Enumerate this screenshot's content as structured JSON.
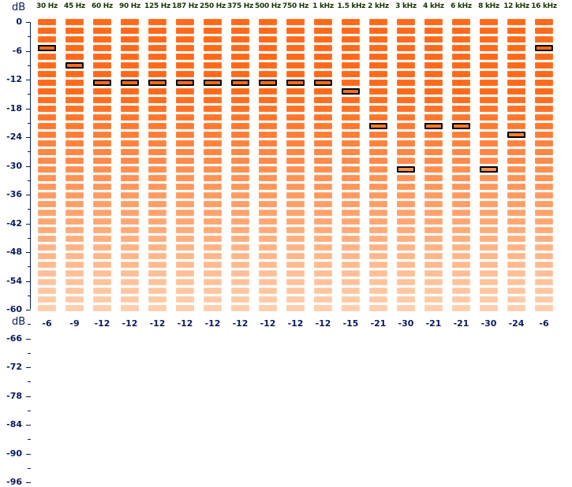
{
  "header": {
    "unit_label": "dB"
  },
  "footer": {
    "unit_label": "dB"
  },
  "scale": {
    "labels": [
      "0",
      "-6",
      "-12",
      "-18",
      "-24",
      "-30",
      "-36",
      "-42",
      "-48",
      "-54",
      "-60",
      "-66",
      "-72",
      "-78",
      "-84",
      "-90",
      "-96"
    ]
  },
  "bands": [
    {
      "label": "30 Hz",
      "peak_db": -6
    },
    {
      "label": "45 Hz",
      "peak_db": -9
    },
    {
      "label": "60 Hz",
      "peak_db": -12
    },
    {
      "label": "90 Hz",
      "peak_db": -12
    },
    {
      "label": "125 Hz",
      "peak_db": -12
    },
    {
      "label": "187 Hz",
      "peak_db": -12
    },
    {
      "label": "250 Hz",
      "peak_db": -12
    },
    {
      "label": "375 Hz",
      "peak_db": -12
    },
    {
      "label": "500 Hz",
      "peak_db": -12
    },
    {
      "label": "750 Hz",
      "peak_db": -12
    },
    {
      "label": "1 kHz",
      "peak_db": -12
    },
    {
      "label": "1.5 kHz",
      "peak_db": -15
    },
    {
      "label": "2 kHz",
      "peak_db": -21
    },
    {
      "label": "3 kHz",
      "peak_db": -30
    },
    {
      "label": "4 kHz",
      "peak_db": -21
    },
    {
      "label": "6 kHz",
      "peak_db": -21
    },
    {
      "label": "8 kHz",
      "peak_db": -30
    },
    {
      "label": "12 kHz",
      "peak_db": -24
    },
    {
      "label": "16 kHz",
      "peak_db": -6
    }
  ],
  "colors": {
    "segment_top": "#ff6a1a",
    "segment_bottom": "#ffd2b2",
    "peak_border": "#000000",
    "scale_text": "#0b1a5c"
  }
}
